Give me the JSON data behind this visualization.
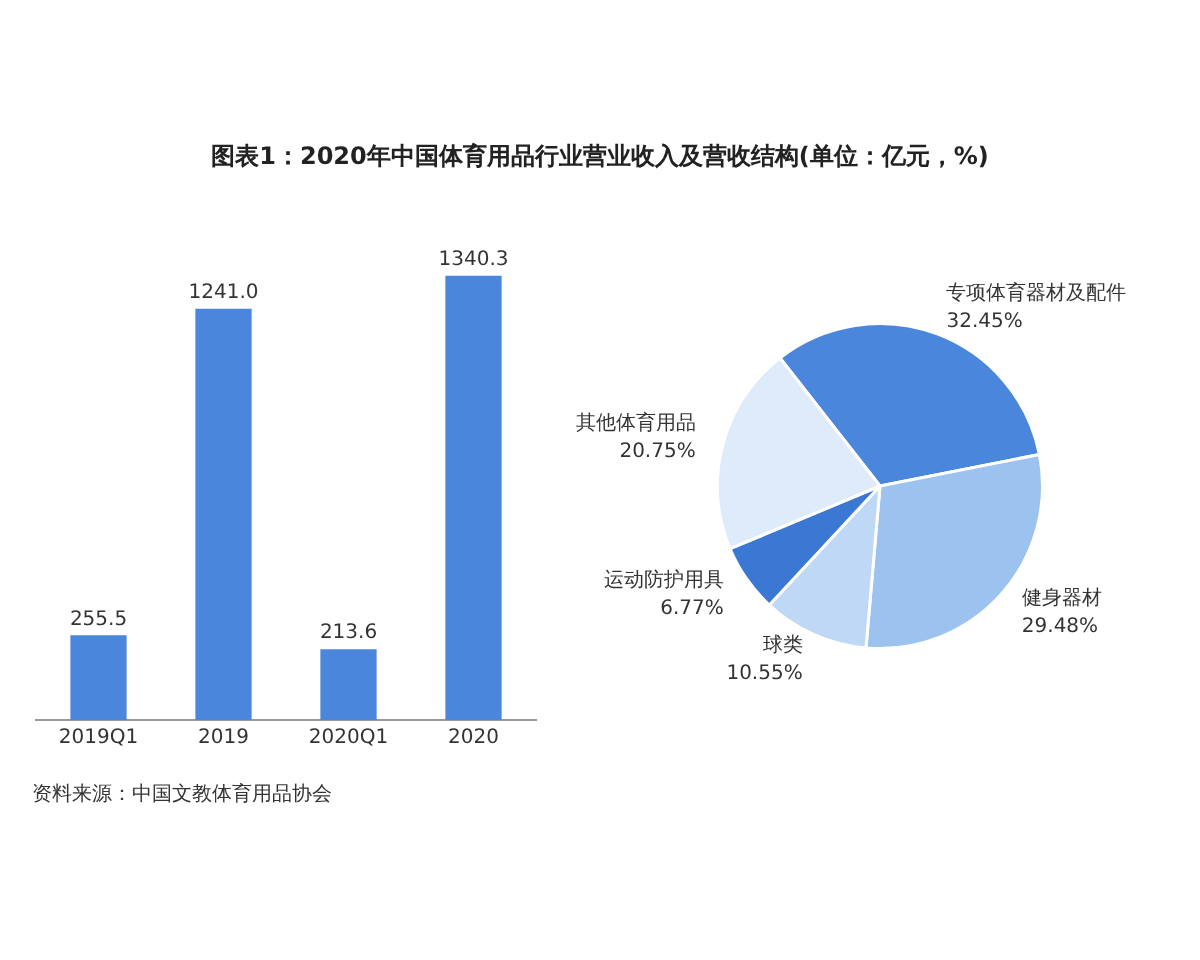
{
  "chart_data": [
    {
      "type": "bar",
      "title": "图表1：2020年中国体育用品行业营业收入及营收结构(单位：亿元，%)",
      "categories": [
        "2019Q1",
        "2019",
        "2020Q1",
        "2020"
      ],
      "values": [
        255.5,
        1241.0,
        213.6,
        1340.3
      ],
      "value_labels": [
        "255.5",
        "1241.0",
        "213.6",
        "1340.3"
      ],
      "color": "#4a86dc",
      "annotations": [
        "资料来源：中国文教体育用品协会"
      ]
    },
    {
      "type": "pie",
      "categories": [
        "专项体育器材及配件",
        "健身器材",
        "球类",
        "运动防护用具",
        "其他体育用品"
      ],
      "values": [
        32.45,
        29.48,
        10.55,
        6.77,
        20.75
      ],
      "value_labels": [
        "32.45%",
        "29.48%",
        "10.55%",
        "6.77%",
        "20.75%"
      ],
      "colors": [
        "#4a86dc",
        "#9cc2f0",
        "#bfd8f6",
        "#3a78d4",
        "#deebfa"
      ]
    }
  ]
}
